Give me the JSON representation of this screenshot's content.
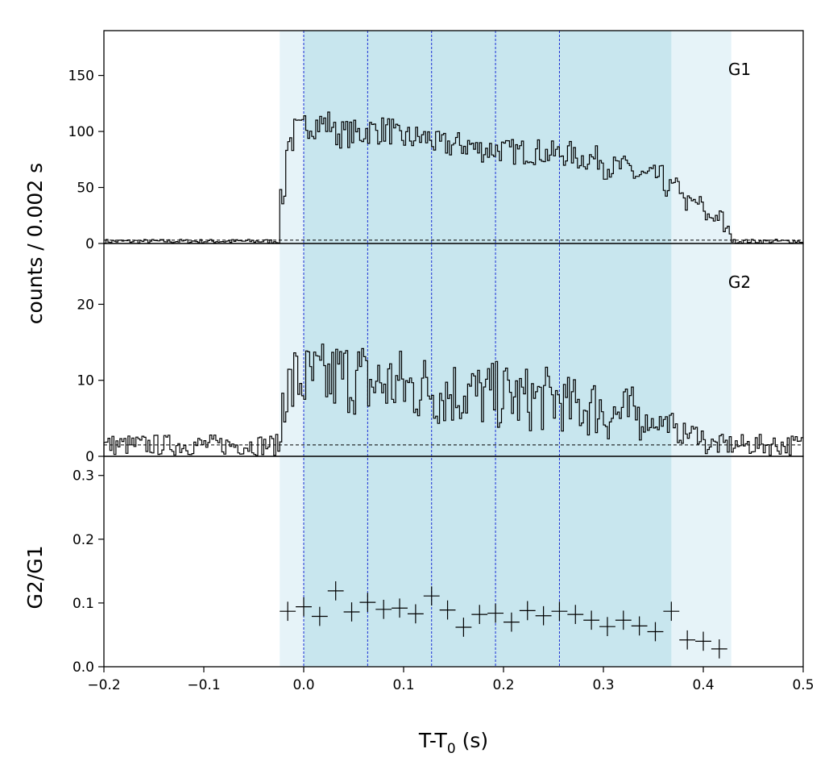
{
  "chart_data": [
    {
      "panel": "top",
      "type": "line",
      "series": [
        {
          "name": "G1"
        }
      ],
      "ylabel": "counts /  0.002 s",
      "ylim": [
        0,
        190
      ],
      "yticks": [
        0,
        50,
        100,
        150
      ],
      "yticklabels": [
        "0",
        "50",
        "100",
        "150"
      ],
      "bin_width": 0.002,
      "bins": [
        [
          -0.2,
          -0.024,
          2
        ],
        [
          -0.024,
          -0.018,
          40
        ],
        [
          -0.018,
          -0.01,
          92
        ],
        [
          -0.01,
          0.0,
          100
        ],
        [
          0.0,
          0.03,
          107
        ],
        [
          0.03,
          0.06,
          98
        ],
        [
          0.06,
          0.09,
          101
        ],
        [
          0.09,
          0.13,
          94
        ],
        [
          0.13,
          0.17,
          88
        ],
        [
          0.17,
          0.2,
          84
        ],
        [
          0.2,
          0.24,
          82
        ],
        [
          0.24,
          0.27,
          80
        ],
        [
          0.27,
          0.3,
          76
        ],
        [
          0.3,
          0.33,
          68
        ],
        [
          0.33,
          0.36,
          60
        ],
        [
          0.36,
          0.38,
          50
        ],
        [
          0.38,
          0.4,
          36
        ],
        [
          0.4,
          0.42,
          24
        ],
        [
          0.42,
          0.428,
          12
        ],
        [
          0.428,
          0.5,
          2
        ]
      ],
      "background_level": 3,
      "annotations": [
        "G1"
      ]
    },
    {
      "panel": "middle",
      "type": "line",
      "series": [
        {
          "name": "G2"
        }
      ],
      "ylim": [
        0,
        28
      ],
      "yticks": [
        0,
        10,
        20
      ],
      "yticklabels": [
        "0",
        "10",
        "20"
      ],
      "bin_width": 0.002,
      "bins": [
        [
          -0.2,
          -0.022,
          1.5
        ],
        [
          -0.022,
          -0.01,
          9
        ],
        [
          -0.01,
          0.03,
          10
        ],
        [
          0.03,
          0.06,
          10.5
        ],
        [
          0.06,
          0.1,
          9.5
        ],
        [
          0.1,
          0.13,
          9
        ],
        [
          0.13,
          0.17,
          8.5
        ],
        [
          0.17,
          0.21,
          8
        ],
        [
          0.21,
          0.26,
          7.5
        ],
        [
          0.26,
          0.3,
          6.5
        ],
        [
          0.3,
          0.34,
          5.5
        ],
        [
          0.34,
          0.37,
          4.5
        ],
        [
          0.37,
          0.4,
          3
        ],
        [
          0.4,
          0.43,
          1.5
        ],
        [
          0.43,
          0.5,
          1.5
        ]
      ],
      "background_level": 1.5,
      "annotations": [
        "G2"
      ]
    },
    {
      "panel": "bottom",
      "type": "scatter",
      "ylabel": "G2/G1",
      "xlabel_text": "T-T",
      "xlabel_sub": "0",
      "xlabel_unit": " (s)",
      "ylim": [
        0,
        0.33
      ],
      "yticks": [
        0,
        0.1,
        0.2,
        0.3
      ],
      "yticklabels": [
        "0.0",
        "0.1",
        "0.2",
        "0.3"
      ],
      "xlim": [
        -0.2,
        0.5
      ],
      "xticks": [
        -0.2,
        -0.1,
        0,
        0.1,
        0.2,
        0.3,
        0.4,
        0.5
      ],
      "xticklabels": [
        "−0.2",
        "−0.1",
        "0.0",
        "0.1",
        "0.2",
        "0.3",
        "0.4",
        "0.5"
      ],
      "points": [
        {
          "x": -0.016,
          "y": 0.087,
          "xerr": 0.008,
          "yerr": 0.015
        },
        {
          "x": 0.0,
          "y": 0.094,
          "xerr": 0.008,
          "yerr": 0.015
        },
        {
          "x": 0.016,
          "y": 0.079,
          "xerr": 0.008,
          "yerr": 0.015
        },
        {
          "x": 0.032,
          "y": 0.119,
          "xerr": 0.008,
          "yerr": 0.015
        },
        {
          "x": 0.048,
          "y": 0.086,
          "xerr": 0.008,
          "yerr": 0.015
        },
        {
          "x": 0.064,
          "y": 0.101,
          "xerr": 0.008,
          "yerr": 0.015
        },
        {
          "x": 0.08,
          "y": 0.09,
          "xerr": 0.008,
          "yerr": 0.015
        },
        {
          "x": 0.096,
          "y": 0.092,
          "xerr": 0.008,
          "yerr": 0.015
        },
        {
          "x": 0.112,
          "y": 0.083,
          "xerr": 0.008,
          "yerr": 0.015
        },
        {
          "x": 0.128,
          "y": 0.111,
          "xerr": 0.008,
          "yerr": 0.015
        },
        {
          "x": 0.144,
          "y": 0.089,
          "xerr": 0.008,
          "yerr": 0.015
        },
        {
          "x": 0.16,
          "y": 0.062,
          "xerr": 0.008,
          "yerr": 0.015
        },
        {
          "x": 0.176,
          "y": 0.082,
          "xerr": 0.008,
          "yerr": 0.015
        },
        {
          "x": 0.192,
          "y": 0.084,
          "xerr": 0.008,
          "yerr": 0.015
        },
        {
          "x": 0.208,
          "y": 0.07,
          "xerr": 0.008,
          "yerr": 0.015
        },
        {
          "x": 0.224,
          "y": 0.088,
          "xerr": 0.008,
          "yerr": 0.015
        },
        {
          "x": 0.24,
          "y": 0.08,
          "xerr": 0.008,
          "yerr": 0.015
        },
        {
          "x": 0.256,
          "y": 0.087,
          "xerr": 0.008,
          "yerr": 0.015
        },
        {
          "x": 0.272,
          "y": 0.082,
          "xerr": 0.008,
          "yerr": 0.015
        },
        {
          "x": 0.288,
          "y": 0.073,
          "xerr": 0.008,
          "yerr": 0.015
        },
        {
          "x": 0.304,
          "y": 0.063,
          "xerr": 0.008,
          "yerr": 0.015
        },
        {
          "x": 0.32,
          "y": 0.073,
          "xerr": 0.008,
          "yerr": 0.015
        },
        {
          "x": 0.336,
          "y": 0.064,
          "xerr": 0.008,
          "yerr": 0.015
        },
        {
          "x": 0.352,
          "y": 0.055,
          "xerr": 0.008,
          "yerr": 0.015
        },
        {
          "x": 0.368,
          "y": 0.087,
          "xerr": 0.008,
          "yerr": 0.015
        },
        {
          "x": 0.384,
          "y": 0.042,
          "xerr": 0.008,
          "yerr": 0.015
        },
        {
          "x": 0.4,
          "y": 0.04,
          "xerr": 0.008,
          "yerr": 0.015
        },
        {
          "x": 0.416,
          "y": 0.028,
          "xerr": 0.008,
          "yerr": 0.015
        }
      ]
    }
  ],
  "shading": {
    "outer": {
      "x0": -0.024,
      "x1": 0.428,
      "color": "#e6f3f8"
    },
    "inner": {
      "x0": 0.0,
      "x1": 0.368,
      "color": "#c8e6ee"
    }
  },
  "interval_lines": {
    "x": [
      0.0,
      0.064,
      0.128,
      0.192,
      0.256
    ],
    "color": "#1a2fd6"
  }
}
